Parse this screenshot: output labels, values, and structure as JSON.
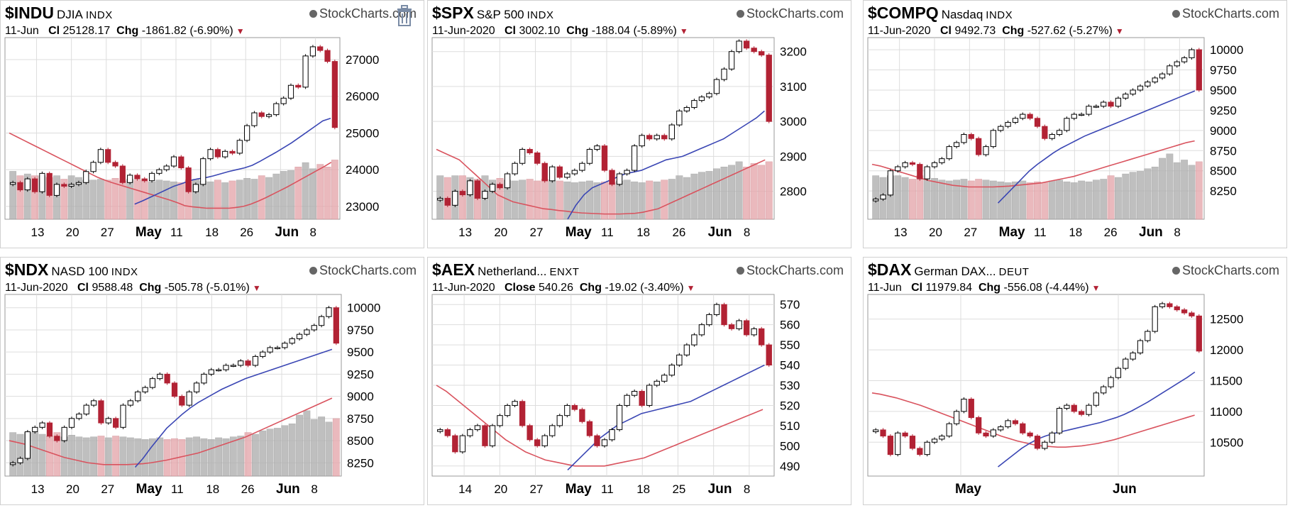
{
  "colors": {
    "up": "#000000",
    "down": "#b22234",
    "ma_fast": "#3a46b4",
    "ma_slow": "#d9535e",
    "volume": "#b0b0b0",
    "grid": "#dddddd"
  },
  "brand_text": "StockCharts.com",
  "icons": {
    "brand": "stockcharts-logo-icon",
    "delete": "trash-icon",
    "menu": "dropdown-triangle-icon"
  },
  "chart_data": [
    {
      "type": "candlestick",
      "symbol": "$INDU",
      "name": "DJIA",
      "exchange": "INDX",
      "date": "11-Jun",
      "close_label": "Cl",
      "close": "25128.17",
      "chg_label": "Chg",
      "chg": "-1861.82 (-6.90%)",
      "xticks": [
        "13",
        "20",
        "27",
        "May",
        "11",
        "18",
        "26",
        "Jun",
        "8"
      ],
      "yticks": [
        "27000",
        "26000",
        "25000",
        "24000",
        "23000"
      ],
      "ylim": [
        22650,
        27600
      ],
      "closes": [
        23650,
        23450,
        23750,
        23400,
        23900,
        23300,
        23600,
        23550,
        23600,
        23650,
        23950,
        24200,
        24550,
        24200,
        24100,
        23650,
        23850,
        23750,
        23700,
        23900,
        24000,
        24100,
        24350,
        24050,
        23400,
        23600,
        24300,
        24550,
        24350,
        24500,
        24450,
        24800,
        25200,
        25550,
        25450,
        25500,
        25800,
        25950,
        26300,
        26250,
        27100,
        27350,
        27250,
        26950,
        25150
      ],
      "ma_fast": [
        null,
        null,
        null,
        null,
        null,
        null,
        null,
        null,
        null,
        null,
        null,
        null,
        null,
        null,
        null,
        null,
        23060,
        23150,
        23250,
        23350,
        23450,
        23550,
        23620,
        23700,
        23750,
        23780,
        23830,
        23890,
        23950,
        24000,
        24050,
        24120,
        24230,
        24350,
        24470,
        24600,
        24730,
        24880,
        25030,
        25180,
        25330,
        25400
      ],
      "ma_slow": [
        25000,
        24900,
        24800,
        24700,
        24600,
        24500,
        24400,
        24300,
        24200,
        24100,
        24000,
        23900,
        23800,
        23720,
        23650,
        23590,
        23530,
        23470,
        23410,
        23350,
        23290,
        23230,
        23170,
        23100,
        23020,
        22990,
        22970,
        22950,
        22950,
        22950,
        22950,
        22970,
        23000,
        23060,
        23140,
        23230,
        23330,
        23430,
        23530,
        23640,
        23750,
        23860,
        23970,
        24080,
        24200
      ],
      "volume": [
        0.55,
        0.5,
        0.52,
        0.5,
        0.5,
        0.48,
        0.5,
        0.46,
        0.5,
        0.48,
        0.45,
        0.45,
        0.46,
        0.45,
        0.47,
        0.44,
        0.46,
        0.45,
        0.44,
        0.43,
        0.45,
        0.44,
        0.43,
        0.42,
        0.45,
        0.46,
        0.44,
        0.43,
        0.45,
        0.42,
        0.44,
        0.45,
        0.47,
        0.46,
        0.5,
        0.48,
        0.52,
        0.55,
        0.56,
        0.6,
        0.65,
        0.58,
        0.63,
        0.6,
        0.68
      ]
    },
    {
      "type": "candlestick",
      "symbol": "$SPX",
      "name": "S&P 500",
      "exchange": "INDX",
      "date": "11-Jun-2020",
      "close_label": "Cl",
      "close": "3002.10",
      "chg_label": "Chg",
      "chg": "-188.04 (-5.89%)",
      "xticks": [
        "13",
        "20",
        "27",
        "May",
        "11",
        "18",
        "26",
        "Jun",
        "8"
      ],
      "yticks": [
        "3200",
        "3100",
        "3000",
        "2900",
        "2800"
      ],
      "ylim": [
        2720,
        3240
      ],
      "closes": [
        2780,
        2760,
        2800,
        2790,
        2830,
        2780,
        2800,
        2820,
        2810,
        2850,
        2880,
        2920,
        2910,
        2880,
        2830,
        2870,
        2840,
        2850,
        2860,
        2880,
        2920,
        2930,
        2860,
        2820,
        2850,
        2860,
        2930,
        2960,
        2950,
        2960,
        2950,
        2990,
        3030,
        3040,
        3060,
        3070,
        3080,
        3120,
        3150,
        3200,
        3230,
        3210,
        3200,
        3190,
        3000
      ],
      "ma_fast": [
        null,
        null,
        null,
        null,
        null,
        null,
        null,
        null,
        null,
        null,
        null,
        null,
        null,
        null,
        null,
        null,
        2720,
        2760,
        2790,
        2810,
        2820,
        2830,
        2840,
        2850,
        2855,
        2860,
        2870,
        2880,
        2890,
        2895,
        2900,
        2910,
        2920,
        2930,
        2940,
        2950,
        2965,
        2980,
        2995,
        3010,
        3030
      ],
      "ma_slow": [
        2920,
        2910,
        2900,
        2890,
        2870,
        2850,
        2830,
        2810,
        2790,
        2780,
        2770,
        2765,
        2760,
        2755,
        2750,
        2748,
        2745,
        2743,
        2740,
        2738,
        2737,
        2736,
        2735,
        2735,
        2735,
        2736,
        2737,
        2740,
        2745,
        2750,
        2760,
        2770,
        2780,
        2790,
        2800,
        2810,
        2820,
        2830,
        2840,
        2850,
        2860,
        2870,
        2880,
        2890
      ],
      "volume": [
        0.5,
        0.48,
        0.5,
        0.5,
        0.48,
        0.46,
        0.5,
        0.45,
        0.47,
        0.45,
        0.44,
        0.45,
        0.46,
        0.44,
        0.46,
        0.45,
        0.44,
        0.43,
        0.42,
        0.43,
        0.44,
        0.42,
        0.43,
        0.42,
        0.44,
        0.45,
        0.43,
        0.42,
        0.44,
        0.43,
        0.45,
        0.46,
        0.5,
        0.48,
        0.52,
        0.54,
        0.55,
        0.58,
        0.6,
        0.62,
        0.66,
        0.6,
        0.64,
        0.62,
        0.66
      ]
    },
    {
      "type": "candlestick",
      "symbol": "$COMPQ",
      "name": "Nasdaq",
      "exchange": "INDX",
      "date": "11-Jun-2020",
      "close_label": "Cl",
      "close": "9492.73",
      "chg_label": "Chg",
      "chg": "-527.62 (-5.27%)",
      "xticks": [
        "13",
        "20",
        "27",
        "May",
        "11",
        "18",
        "26",
        "Jun",
        "8"
      ],
      "yticks": [
        "10000",
        "9750",
        "9500",
        "9250",
        "9000",
        "8750",
        "8500",
        "8250"
      ],
      "ylim": [
        7900,
        10150
      ],
      "closes": [
        8150,
        8200,
        8500,
        8550,
        8600,
        8580,
        8400,
        8550,
        8600,
        8650,
        8800,
        8850,
        8950,
        8900,
        8700,
        8800,
        9000,
        9050,
        9100,
        9150,
        9200,
        9150,
        9050,
        8900,
        8950,
        9000,
        9150,
        9200,
        9200,
        9300,
        9300,
        9350,
        9300,
        9400,
        9450,
        9500,
        9550,
        9600,
        9650,
        9700,
        9800,
        9850,
        9900,
        10000,
        9500
      ],
      "ma_fast": [
        null,
        null,
        null,
        null,
        null,
        null,
        null,
        null,
        null,
        null,
        null,
        null,
        null,
        null,
        null,
        null,
        8100,
        8200,
        8300,
        8400,
        8500,
        8580,
        8650,
        8720,
        8780,
        8830,
        8880,
        8930,
        8970,
        9010,
        9050,
        9090,
        9130,
        9170,
        9210,
        9250,
        9290,
        9330,
        9370,
        9410,
        9450,
        9490
      ],
      "ma_slow": [
        8580,
        8560,
        8530,
        8500,
        8470,
        8440,
        8410,
        8380,
        8360,
        8340,
        8320,
        8310,
        8300,
        8300,
        8300,
        8300,
        8305,
        8310,
        8320,
        8330,
        8340,
        8350,
        8370,
        8390,
        8410,
        8430,
        8460,
        8490,
        8520,
        8550,
        8580,
        8610,
        8640,
        8670,
        8700,
        8730,
        8760,
        8790,
        8820,
        8850,
        8870
      ],
      "volume": [
        0.5,
        0.48,
        0.5,
        0.5,
        0.48,
        0.46,
        0.5,
        0.45,
        0.47,
        0.45,
        0.44,
        0.45,
        0.46,
        0.44,
        0.46,
        0.45,
        0.44,
        0.43,
        0.42,
        0.43,
        0.44,
        0.42,
        0.43,
        0.42,
        0.44,
        0.45,
        0.43,
        0.42,
        0.44,
        0.43,
        0.45,
        0.46,
        0.5,
        0.48,
        0.52,
        0.54,
        0.55,
        0.58,
        0.6,
        0.7,
        0.75,
        0.65,
        0.68,
        0.62,
        0.66
      ]
    },
    {
      "type": "candlestick",
      "symbol": "$NDX",
      "name": "NASD 100",
      "exchange": "INDX",
      "date": "11-Jun-2020",
      "close_label": "Cl",
      "close": "9588.48",
      "chg_label": "Chg",
      "chg": "-505.78 (-5.01%)",
      "xticks": [
        "13",
        "20",
        "27",
        "May",
        "11",
        "18",
        "26",
        "Jun",
        "8"
      ],
      "yticks": [
        "10000",
        "9750",
        "9500",
        "9250",
        "9000",
        "8750",
        "8500",
        "8250"
      ],
      "ylim": [
        8100,
        10150
      ],
      "closes": [
        8250,
        8300,
        8600,
        8650,
        8700,
        8550,
        8500,
        8650,
        8750,
        8800,
        8900,
        8950,
        8700,
        8750,
        8650,
        8900,
        8950,
        9050,
        9100,
        9200,
        9250,
        9150,
        9000,
        8900,
        9050,
        9150,
        9250,
        9300,
        9300,
        9350,
        9350,
        9400,
        9350,
        9450,
        9500,
        9550,
        9550,
        9600,
        9650,
        9700,
        9750,
        9800,
        9900,
        10000,
        9600
      ],
      "ma_fast": [
        null,
        null,
        null,
        null,
        null,
        null,
        null,
        null,
        null,
        null,
        null,
        null,
        null,
        null,
        null,
        null,
        8200,
        8300,
        8420,
        8530,
        8640,
        8720,
        8800,
        8870,
        8930,
        8980,
        9030,
        9080,
        9120,
        9160,
        9200,
        9230,
        9260,
        9290,
        9320,
        9350,
        9380,
        9410,
        9440,
        9470,
        9500,
        9530
      ],
      "ma_slow": [
        8500,
        8480,
        8460,
        8430,
        8400,
        8370,
        8340,
        8310,
        8290,
        8270,
        8250,
        8240,
        8230,
        8230,
        8230,
        8230,
        8235,
        8240,
        8250,
        8265,
        8280,
        8300,
        8320,
        8340,
        8360,
        8390,
        8420,
        8450,
        8480,
        8510,
        8540,
        8580,
        8620,
        8660,
        8700,
        8740,
        8780,
        8820,
        8860,
        8900,
        8940,
        8980
      ],
      "volume": [
        0.5,
        0.48,
        0.5,
        0.5,
        0.48,
        0.46,
        0.5,
        0.45,
        0.47,
        0.45,
        0.44,
        0.45,
        0.46,
        0.44,
        0.46,
        0.45,
        0.44,
        0.43,
        0.42,
        0.43,
        0.44,
        0.42,
        0.43,
        0.42,
        0.44,
        0.45,
        0.43,
        0.42,
        0.44,
        0.43,
        0.45,
        0.46,
        0.5,
        0.48,
        0.52,
        0.54,
        0.55,
        0.58,
        0.6,
        0.7,
        0.75,
        0.65,
        0.68,
        0.62,
        0.66
      ]
    },
    {
      "type": "candlestick",
      "symbol": "$AEX",
      "name": "Netherland...",
      "exchange": "ENXT",
      "date": "11-Jun-2020",
      "close_label": "Close",
      "close": "540.26",
      "chg_label": "Chg",
      "chg": "-19.02 (-3.40%)",
      "xticks": [
        "14",
        "20",
        "27",
        "May",
        "11",
        "18",
        "25",
        "Jun",
        "8"
      ],
      "yticks": [
        "570",
        "560",
        "550",
        "540",
        "530",
        "520",
        "510",
        "500",
        "490"
      ],
      "ylim": [
        485,
        575
      ],
      "closes": [
        508,
        505,
        497,
        505,
        508,
        510,
        500,
        510,
        515,
        520,
        522,
        510,
        503,
        500,
        505,
        510,
        515,
        520,
        518,
        512,
        505,
        500,
        503,
        508,
        520,
        525,
        527,
        520,
        530,
        532,
        535,
        540,
        545,
        550,
        555,
        560,
        565,
        570,
        560,
        558,
        562,
        555,
        558,
        550,
        540
      ],
      "ma_fast": [
        null,
        null,
        null,
        null,
        null,
        null,
        null,
        null,
        null,
        null,
        null,
        null,
        null,
        null,
        null,
        null,
        488,
        492,
        496,
        500,
        504,
        507,
        510,
        512,
        514,
        516,
        517,
        518,
        519,
        520,
        521,
        522,
        524,
        526,
        528,
        530,
        532,
        534,
        536,
        538,
        540
      ],
      "ma_slow": [
        530,
        527,
        523,
        519,
        515,
        511,
        507,
        503,
        500,
        497,
        495,
        493,
        492,
        491,
        490,
        490,
        490,
        490,
        491,
        492,
        493,
        494,
        496,
        498,
        500,
        502,
        504,
        506,
        508,
        510,
        512,
        514,
        516,
        518
      ],
      "volume": []
    },
    {
      "type": "candlestick",
      "symbol": "$DAX",
      "name": "German DAX...",
      "exchange": "DEUT",
      "date": "11-Jun",
      "close_label": "Cl",
      "close": "11979.84",
      "chg_label": "Chg",
      "chg": "-556.08 (-4.44%)",
      "xticks": [
        "May",
        "Jun"
      ],
      "yticks": [
        "12500",
        "12000",
        "11500",
        "11000",
        "10500"
      ],
      "ylim": [
        9950,
        12900
      ],
      "closes": [
        10700,
        10600,
        10300,
        10650,
        10600,
        10400,
        10300,
        10500,
        10550,
        10600,
        10800,
        11000,
        11200,
        10900,
        10650,
        10600,
        10700,
        10750,
        10850,
        10800,
        10650,
        10600,
        10400,
        10500,
        10650,
        11050,
        11100,
        11000,
        10950,
        11100,
        11300,
        11400,
        11550,
        11700,
        11850,
        11950,
        12150,
        12300,
        12700,
        12750,
        12700,
        12650,
        12600,
        12550,
        11980
      ],
      "ma_fast": [
        null,
        null,
        null,
        null,
        null,
        null,
        null,
        null,
        null,
        null,
        null,
        null,
        null,
        null,
        null,
        null,
        10100,
        10200,
        10300,
        10400,
        10480,
        10550,
        10600,
        10640,
        10670,
        10700,
        10730,
        10760,
        10790,
        10820,
        10860,
        10900,
        10950,
        11010,
        11080,
        11150,
        11230,
        11310,
        11390,
        11470,
        11550,
        11640
      ],
      "ma_slow": [
        11300,
        11280,
        11250,
        11220,
        11180,
        11140,
        11100,
        11050,
        11000,
        10950,
        10900,
        10850,
        10800,
        10750,
        10700,
        10650,
        10600,
        10560,
        10520,
        10490,
        10460,
        10440,
        10430,
        10420,
        10420,
        10430,
        10440,
        10460,
        10480,
        10510,
        10540,
        10580,
        10620,
        10660,
        10700,
        10740,
        10780,
        10820,
        10860,
        10900,
        10940
      ],
      "volume": []
    }
  ]
}
